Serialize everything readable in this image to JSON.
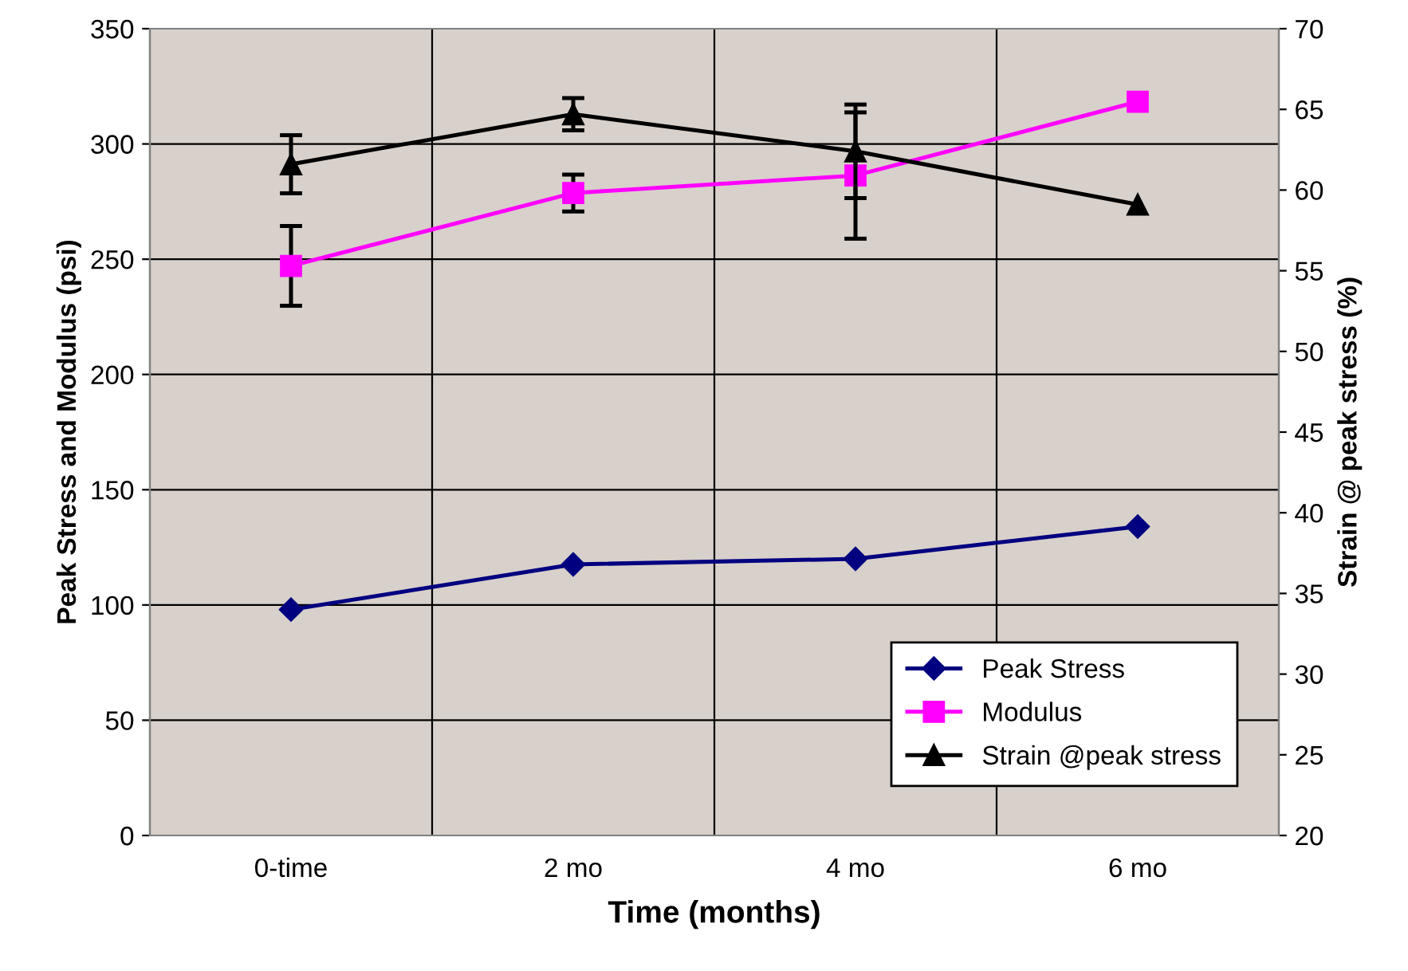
{
  "chart_data": {
    "type": "line",
    "xlabel": "Time (months)",
    "ylabel": "Peak Stress and Modulus (psi)",
    "y2label": "Strain @ peak stress (%)",
    "categories": [
      "0-time",
      "2 mo",
      "4 mo",
      "6 mo"
    ],
    "series": [
      {
        "name": "Peak Stress",
        "color": "#000080",
        "marker": "diamond",
        "values": [
          98,
          117.6,
          120,
          134
        ]
      },
      {
        "name": "Modulus",
        "color": "#ff00ff",
        "marker": "square",
        "values": [
          247.1,
          278.7,
          286.3,
          318.3
        ],
        "errors": [
          17.3,
          8,
          27.4,
          null
        ]
      },
      {
        "name": "Strain @peak stress",
        "color": "#000000",
        "marker": "triangle",
        "axis": "y2",
        "values": [
          61.6,
          64.7,
          62.4,
          59.1
        ],
        "errors": [
          1.8,
          1,
          2.9,
          null
        ]
      }
    ],
    "ylim": [
      0,
      350
    ],
    "yticks": [
      0,
      50,
      100,
      150,
      200,
      250,
      300,
      350
    ],
    "y2lim": [
      20,
      70
    ],
    "y2ticks": [
      20,
      25,
      30,
      35,
      40,
      45,
      50,
      55,
      60,
      65,
      70
    ],
    "grid": true,
    "legend": "bottom right",
    "line_style": "solid"
  }
}
